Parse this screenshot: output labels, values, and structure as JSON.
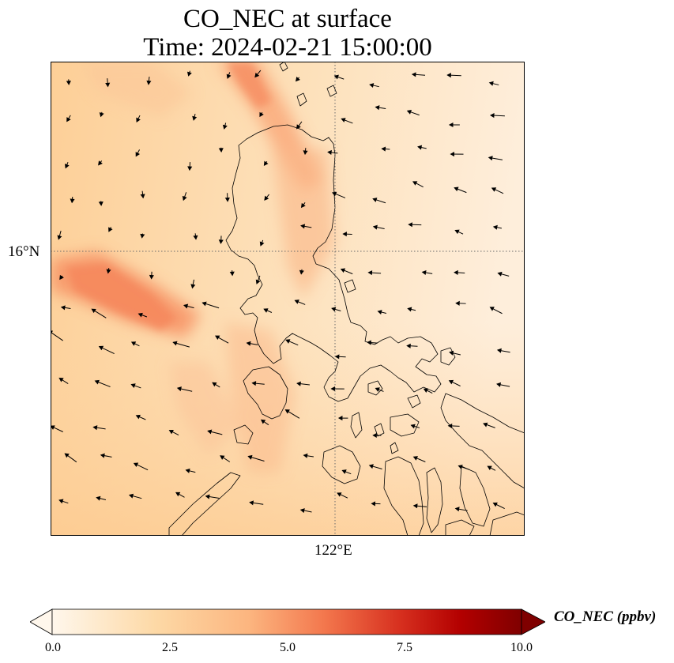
{
  "title": {
    "line1": "CO_NEC at surface",
    "line2": "Time: 2024-02-21 15:00:00"
  },
  "map": {
    "projection": "regular lat/lon",
    "gridlines": "dotted",
    "lat_tick": "16°N",
    "lon_tick": "122°E",
    "coastline_color": "#000000",
    "wind_vectors": true
  },
  "colorbar": {
    "label": "CO_NEC (ppbv)",
    "ticks": [
      "0.0",
      "2.5",
      "5.0",
      "7.5",
      "10.0"
    ],
    "range": [
      0,
      10
    ],
    "extend": "both",
    "colormap": "OrRd",
    "colors": [
      "#fff7ec",
      "#fdd49e",
      "#fc8d59",
      "#d7301f",
      "#b30000",
      "#7f0000"
    ]
  }
}
